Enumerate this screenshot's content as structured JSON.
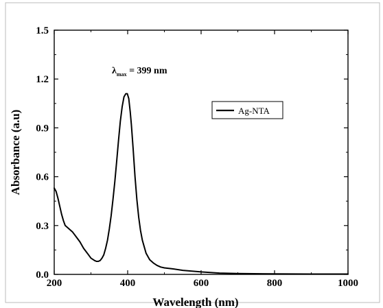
{
  "chart_data": {
    "type": "line",
    "xlabel": "Wavelength (nm)",
    "ylabel": "Absorbance (a.u)",
    "xlim": [
      200,
      1000
    ],
    "ylim": [
      0,
      1.5
    ],
    "x_ticks": [
      "200",
      "400",
      "600",
      "800",
      "1000"
    ],
    "y_ticks": [
      "0.0",
      "0.3",
      "0.6",
      "0.9",
      "1.2",
      "1.5"
    ],
    "grid": false,
    "legend_position": "top-right",
    "annotation": {
      "symbol": "λ",
      "subscript": "max",
      "text": " = 399 nm"
    },
    "series": [
      {
        "name": "Ag-NTA",
        "color": "#000000",
        "x": [
          200,
          205,
          210,
          215,
          220,
          225,
          230,
          240,
          250,
          260,
          270,
          280,
          290,
          300,
          310,
          315,
          320,
          325,
          330,
          335,
          340,
          345,
          350,
          355,
          360,
          365,
          370,
          375,
          380,
          385,
          390,
          395,
          399,
          403,
          407,
          410,
          415,
          420,
          425,
          430,
          435,
          440,
          445,
          450,
          460,
          470,
          480,
          490,
          500,
          520,
          550,
          600,
          650,
          700,
          800,
          900,
          1000
        ],
        "y": [
          0.53,
          0.51,
          0.47,
          0.42,
          0.37,
          0.33,
          0.3,
          0.28,
          0.26,
          0.23,
          0.2,
          0.16,
          0.13,
          0.1,
          0.085,
          0.08,
          0.08,
          0.085,
          0.1,
          0.12,
          0.16,
          0.21,
          0.28,
          0.36,
          0.46,
          0.57,
          0.69,
          0.82,
          0.94,
          1.03,
          1.09,
          1.11,
          1.11,
          1.08,
          1.0,
          0.92,
          0.77,
          0.6,
          0.46,
          0.35,
          0.27,
          0.21,
          0.17,
          0.13,
          0.09,
          0.07,
          0.055,
          0.045,
          0.04,
          0.035,
          0.025,
          0.015,
          0.008,
          0.005,
          0.003,
          0.002,
          0.002
        ]
      }
    ]
  }
}
